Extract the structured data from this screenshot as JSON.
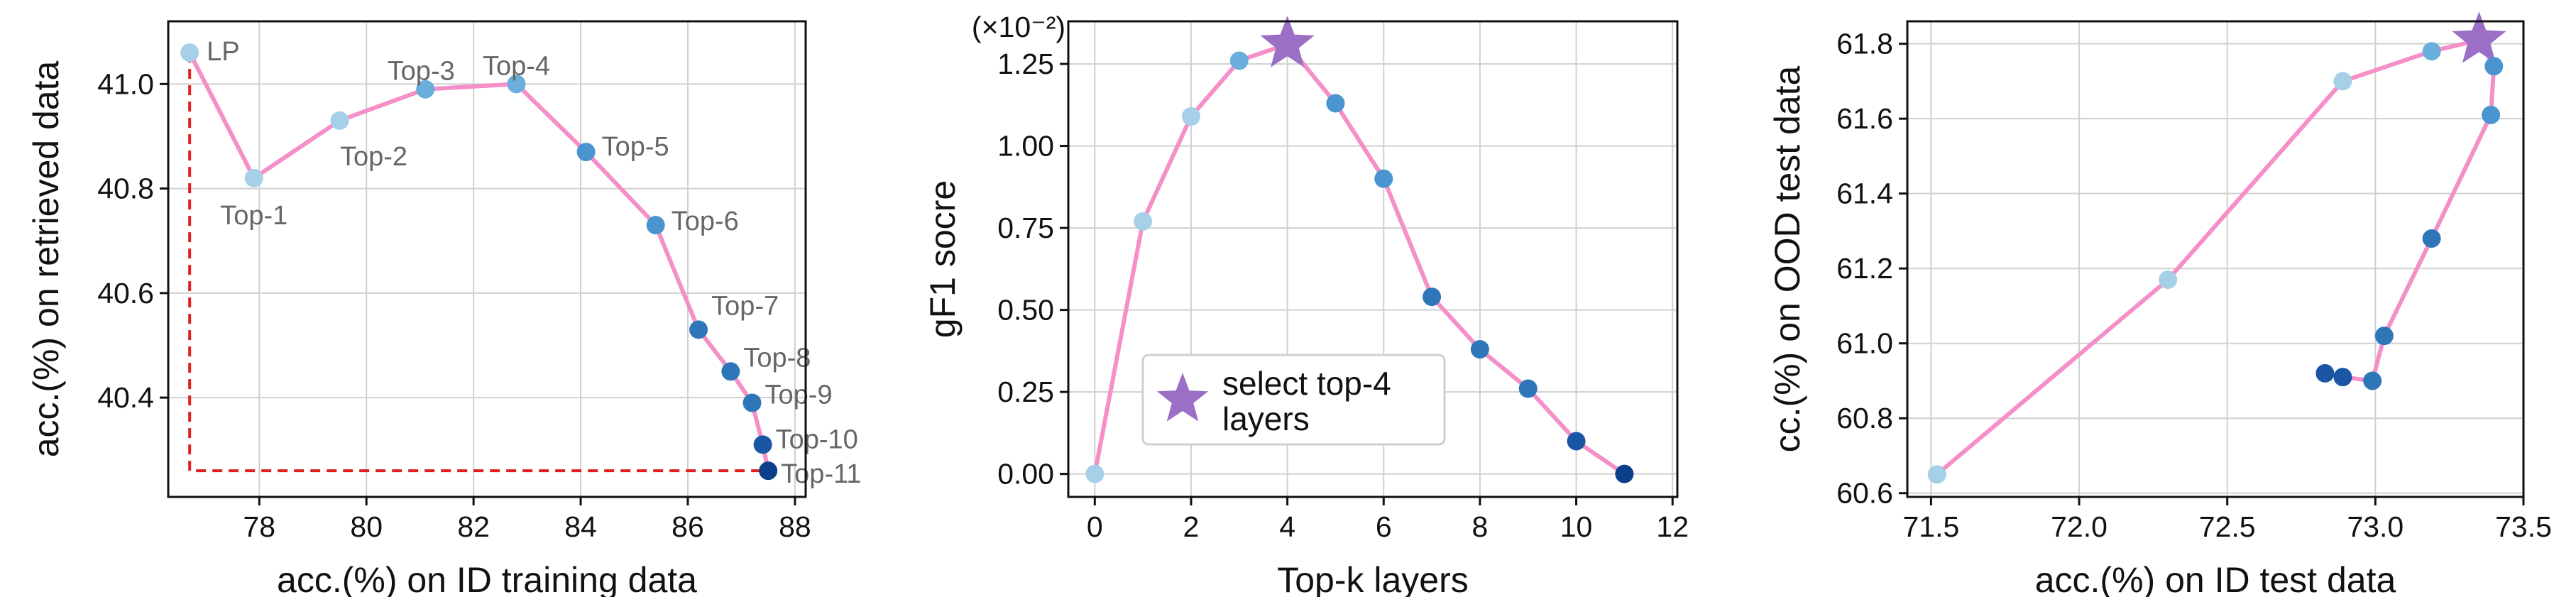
{
  "colors": {
    "line": "#f58fc8",
    "threshold": "#e02020",
    "star": "#9b6fc6",
    "grid": "#d0d0d0",
    "point_scale": [
      "#a6cfe8",
      "#6aafdc",
      "#4a94cf",
      "#2f76b8",
      "#1a56a3",
      "#0a3f8a"
    ]
  },
  "chart_data": [
    {
      "type": "line",
      "xlabel": "acc.(%) on ID training data",
      "ylabel": "acc.(%) on retrieved data",
      "xlim": [
        76.3,
        88.2
      ],
      "ylim": [
        40.21,
        41.12
      ],
      "xticks": [
        78,
        80,
        82,
        84,
        86,
        88
      ],
      "xtick_labels": [
        "78",
        "80",
        "82",
        "84",
        "86",
        "88"
      ],
      "yticks": [
        40.4,
        40.6,
        40.8,
        41.0
      ],
      "ytick_labels": [
        "40.4",
        "40.6",
        "40.8",
        "41.0"
      ],
      "grid": true,
      "points": [
        {
          "label": "LP",
          "x": 76.7,
          "y": 41.06,
          "shade": 0
        },
        {
          "label": "Top-1",
          "x": 77.9,
          "y": 40.82,
          "shade": 0
        },
        {
          "label": "Top-2",
          "x": 79.5,
          "y": 40.93,
          "shade": 0
        },
        {
          "label": "Top-3",
          "x": 81.1,
          "y": 40.99,
          "shade": 1
        },
        {
          "label": "Top-4",
          "x": 82.8,
          "y": 41.0,
          "shade": 1
        },
        {
          "label": "Top-5",
          "x": 84.1,
          "y": 40.87,
          "shade": 2
        },
        {
          "label": "Top-6",
          "x": 85.4,
          "y": 40.73,
          "shade": 2
        },
        {
          "label": "Top-7",
          "x": 86.2,
          "y": 40.53,
          "shade": 3
        },
        {
          "label": "Top-8",
          "x": 86.8,
          "y": 40.45,
          "shade": 3
        },
        {
          "label": "Top-9",
          "x": 87.2,
          "y": 40.39,
          "shade": 3
        },
        {
          "label": "Top-10",
          "x": 87.4,
          "y": 40.31,
          "shade": 4
        },
        {
          "label": "Top-11",
          "x": 87.5,
          "y": 40.26,
          "shade": 5
        }
      ],
      "threshold": {
        "x": 76.7,
        "y": 40.26
      }
    },
    {
      "type": "line",
      "xlabel": "Top-k layers",
      "ylabel": "gF1 socre",
      "multiplier": "(×10⁻²)",
      "xlim": [
        -0.55,
        12.1
      ],
      "ylim": [
        -0.07,
        1.38
      ],
      "xticks": [
        0,
        2,
        4,
        6,
        8,
        10,
        12
      ],
      "xtick_labels": [
        "0",
        "2",
        "4",
        "6",
        "8",
        "10",
        "12"
      ],
      "yticks": [
        0.0,
        0.25,
        0.5,
        0.75,
        1.0,
        1.25
      ],
      "ytick_labels": [
        "0.00",
        "0.25",
        "0.50",
        "0.75",
        "1.00",
        "1.25"
      ],
      "grid": true,
      "points": [
        {
          "x": 0,
          "y": 0.0,
          "shade": 0
        },
        {
          "x": 1,
          "y": 0.77,
          "shade": 0
        },
        {
          "x": 2,
          "y": 1.09,
          "shade": 0
        },
        {
          "x": 3,
          "y": 1.26,
          "shade": 1
        },
        {
          "x": 4,
          "y": 1.31,
          "shade": 1
        },
        {
          "x": 5,
          "y": 1.13,
          "shade": 2
        },
        {
          "x": 6,
          "y": 0.9,
          "shade": 2
        },
        {
          "x": 7,
          "y": 0.54,
          "shade": 3
        },
        {
          "x": 8,
          "y": 0.38,
          "shade": 3
        },
        {
          "x": 9,
          "y": 0.26,
          "shade": 3
        },
        {
          "x": 10,
          "y": 0.1,
          "shade": 4
        },
        {
          "x": 11,
          "y": 0.0,
          "shade": 5
        }
      ],
      "star": {
        "x": 4,
        "y": 1.31
      },
      "legend": {
        "label_line1": "select top-4",
        "label_line2": "layers",
        "placement": "lower-left"
      }
    },
    {
      "type": "line",
      "xlabel": "acc.(%) on ID test data",
      "ylabel": "cc.(%) on OOD test data",
      "xlim": [
        71.42,
        73.5
      ],
      "ylim": [
        60.59,
        61.86
      ],
      "xticks": [
        71.5,
        72.0,
        72.5,
        73.0,
        73.5
      ],
      "xtick_labels": [
        "71.5",
        "72.0",
        "72.5",
        "73.0",
        "73.5"
      ],
      "yticks": [
        60.6,
        60.8,
        61.0,
        61.2,
        61.4,
        61.6,
        61.8
      ],
      "ytick_labels": [
        "60.6",
        "60.8",
        "61.0",
        "61.2",
        "61.4",
        "61.6",
        "61.8"
      ],
      "grid": true,
      "points": [
        {
          "x": 71.52,
          "y": 60.65,
          "shade": 0
        },
        {
          "x": 72.3,
          "y": 61.17,
          "shade": 0
        },
        {
          "x": 72.89,
          "y": 61.7,
          "shade": 0
        },
        {
          "x": 73.19,
          "y": 61.78,
          "shade": 1
        },
        {
          "x": 73.35,
          "y": 61.81,
          "shade": 1
        },
        {
          "x": 73.4,
          "y": 61.74,
          "shade": 2
        },
        {
          "x": 73.39,
          "y": 61.61,
          "shade": 2
        },
        {
          "x": 73.19,
          "y": 61.28,
          "shade": 3
        },
        {
          "x": 73.03,
          "y": 61.02,
          "shade": 3
        },
        {
          "x": 72.99,
          "y": 60.9,
          "shade": 3
        },
        {
          "x": 72.89,
          "y": 60.91,
          "shade": 4
        },
        {
          "x": 72.83,
          "y": 60.92,
          "shade": 4
        }
      ],
      "star": {
        "x": 73.35,
        "y": 61.81
      }
    }
  ]
}
